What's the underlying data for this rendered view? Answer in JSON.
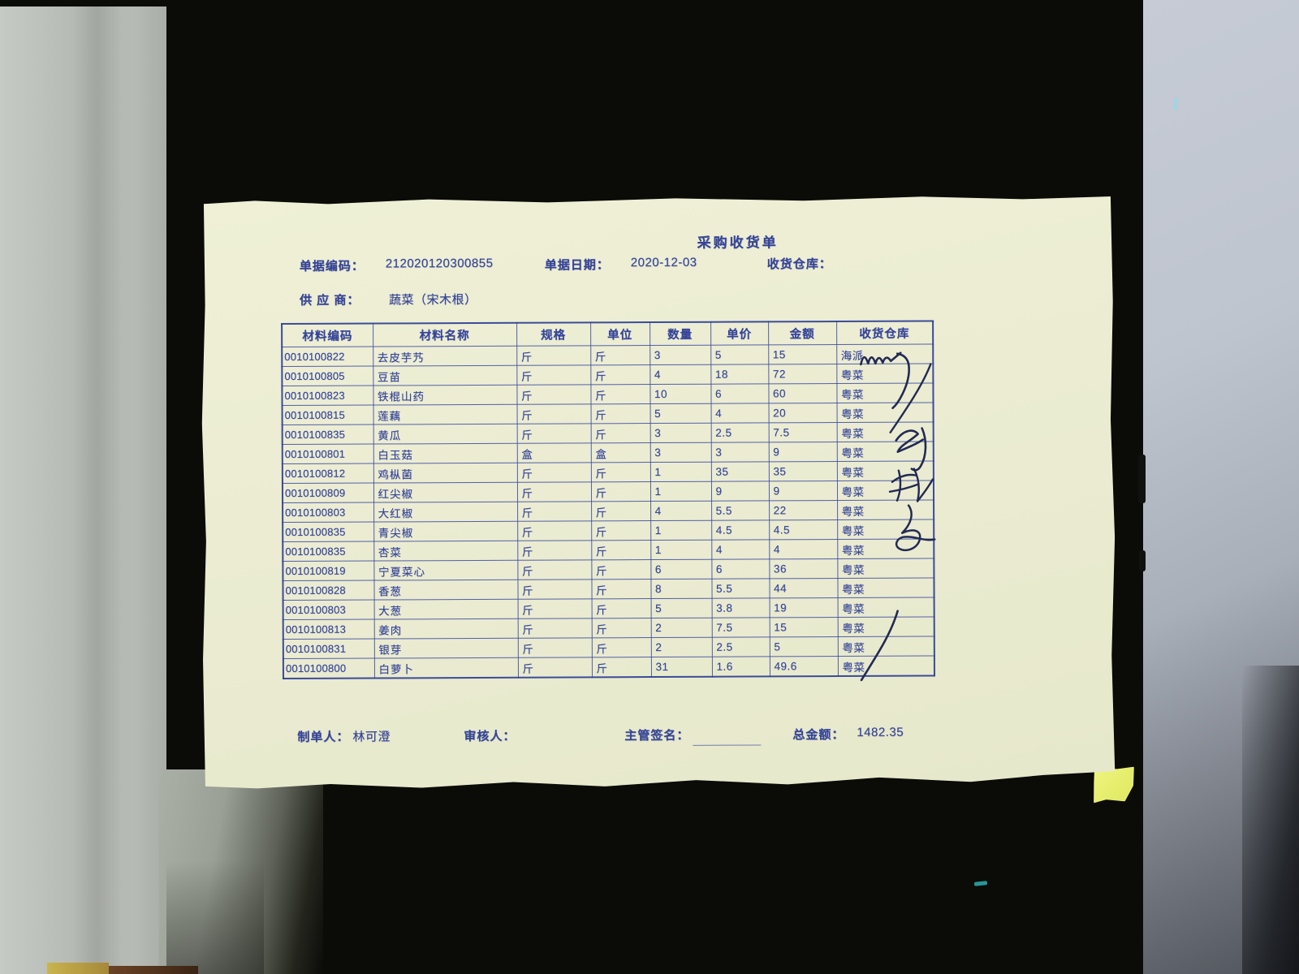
{
  "document": {
    "title": "采购收货单",
    "fields": {
      "doc_no_label": "单据编码：",
      "doc_no": "212020120300855",
      "date_label": "单据日期：",
      "date": "2020-12-03",
      "warehouse_label": "收货仓库：",
      "warehouse": "",
      "supplier_label": "供 应 商：",
      "supplier": "蔬菜（宋木根）"
    },
    "table": {
      "headers": [
        "材料编码",
        "材料名称",
        "规格",
        "单位",
        "数量",
        "单价",
        "金额",
        "收货仓库"
      ],
      "rows": [
        [
          "0010100822",
          "去皮芋艿",
          "斤",
          "斤",
          "3",
          "5",
          "15",
          "海派"
        ],
        [
          "0010100805",
          "豆苗",
          "斤",
          "斤",
          "4",
          "18",
          "72",
          "粤菜"
        ],
        [
          "0010100823",
          "铁棍山药",
          "斤",
          "斤",
          "10",
          "6",
          "60",
          "粤菜"
        ],
        [
          "0010100815",
          "莲藕",
          "斤",
          "斤",
          "5",
          "4",
          "20",
          "粤菜"
        ],
        [
          "0010100835",
          "黄瓜",
          "斤",
          "斤",
          "3",
          "2.5",
          "7.5",
          "粤菜"
        ],
        [
          "0010100801",
          "白玉菇",
          "盒",
          "盒",
          "3",
          "3",
          "9",
          "粤菜"
        ],
        [
          "0010100812",
          "鸡枞菌",
          "斤",
          "斤",
          "1",
          "35",
          "35",
          "粤菜"
        ],
        [
          "0010100809",
          "红尖椒",
          "斤",
          "斤",
          "1",
          "9",
          "9",
          "粤菜"
        ],
        [
          "0010100803",
          "大红椒",
          "斤",
          "斤",
          "4",
          "5.5",
          "22",
          "粤菜"
        ],
        [
          "0010100835",
          "青尖椒",
          "斤",
          "斤",
          "1",
          "4.5",
          "4.5",
          "粤菜"
        ],
        [
          "0010100835",
          "杏菜",
          "斤",
          "斤",
          "1",
          "4",
          "4",
          "粤菜"
        ],
        [
          "0010100819",
          "宁夏菜心",
          "斤",
          "斤",
          "6",
          "6",
          "36",
          "粤菜"
        ],
        [
          "0010100828",
          "香葱",
          "斤",
          "斤",
          "8",
          "5.5",
          "44",
          "粤菜"
        ],
        [
          "0010100803",
          "大葱",
          "斤",
          "斤",
          "5",
          "3.8",
          "19",
          "粤菜"
        ],
        [
          "0010100813",
          "姜肉",
          "斤",
          "斤",
          "2",
          "7.5",
          "15",
          "粤菜"
        ],
        [
          "0010100831",
          "银芽",
          "斤",
          "斤",
          "2",
          "2.5",
          "5",
          "粤菜"
        ],
        [
          "0010100800",
          "白萝卜",
          "斤",
          "斤",
          "31",
          "1.6",
          "49.6",
          "粤菜"
        ]
      ]
    },
    "footer": {
      "maker_label": "制单人：",
      "maker": "林可澄",
      "auditor_label": "审核人：",
      "auditor": "",
      "supervisor_label": "主管签名：",
      "total_label": "总金额：",
      "total": "1482.35"
    },
    "annotations": {
      "side_signature_text": "刘",
      "has_warehouse_scribble": true,
      "has_bottom_slash": true
    },
    "colors": {
      "ink": "#35449a",
      "paper": "#ebecd2",
      "handwriting_ink": "#222a52",
      "mat_background": "#0b0b08"
    }
  }
}
